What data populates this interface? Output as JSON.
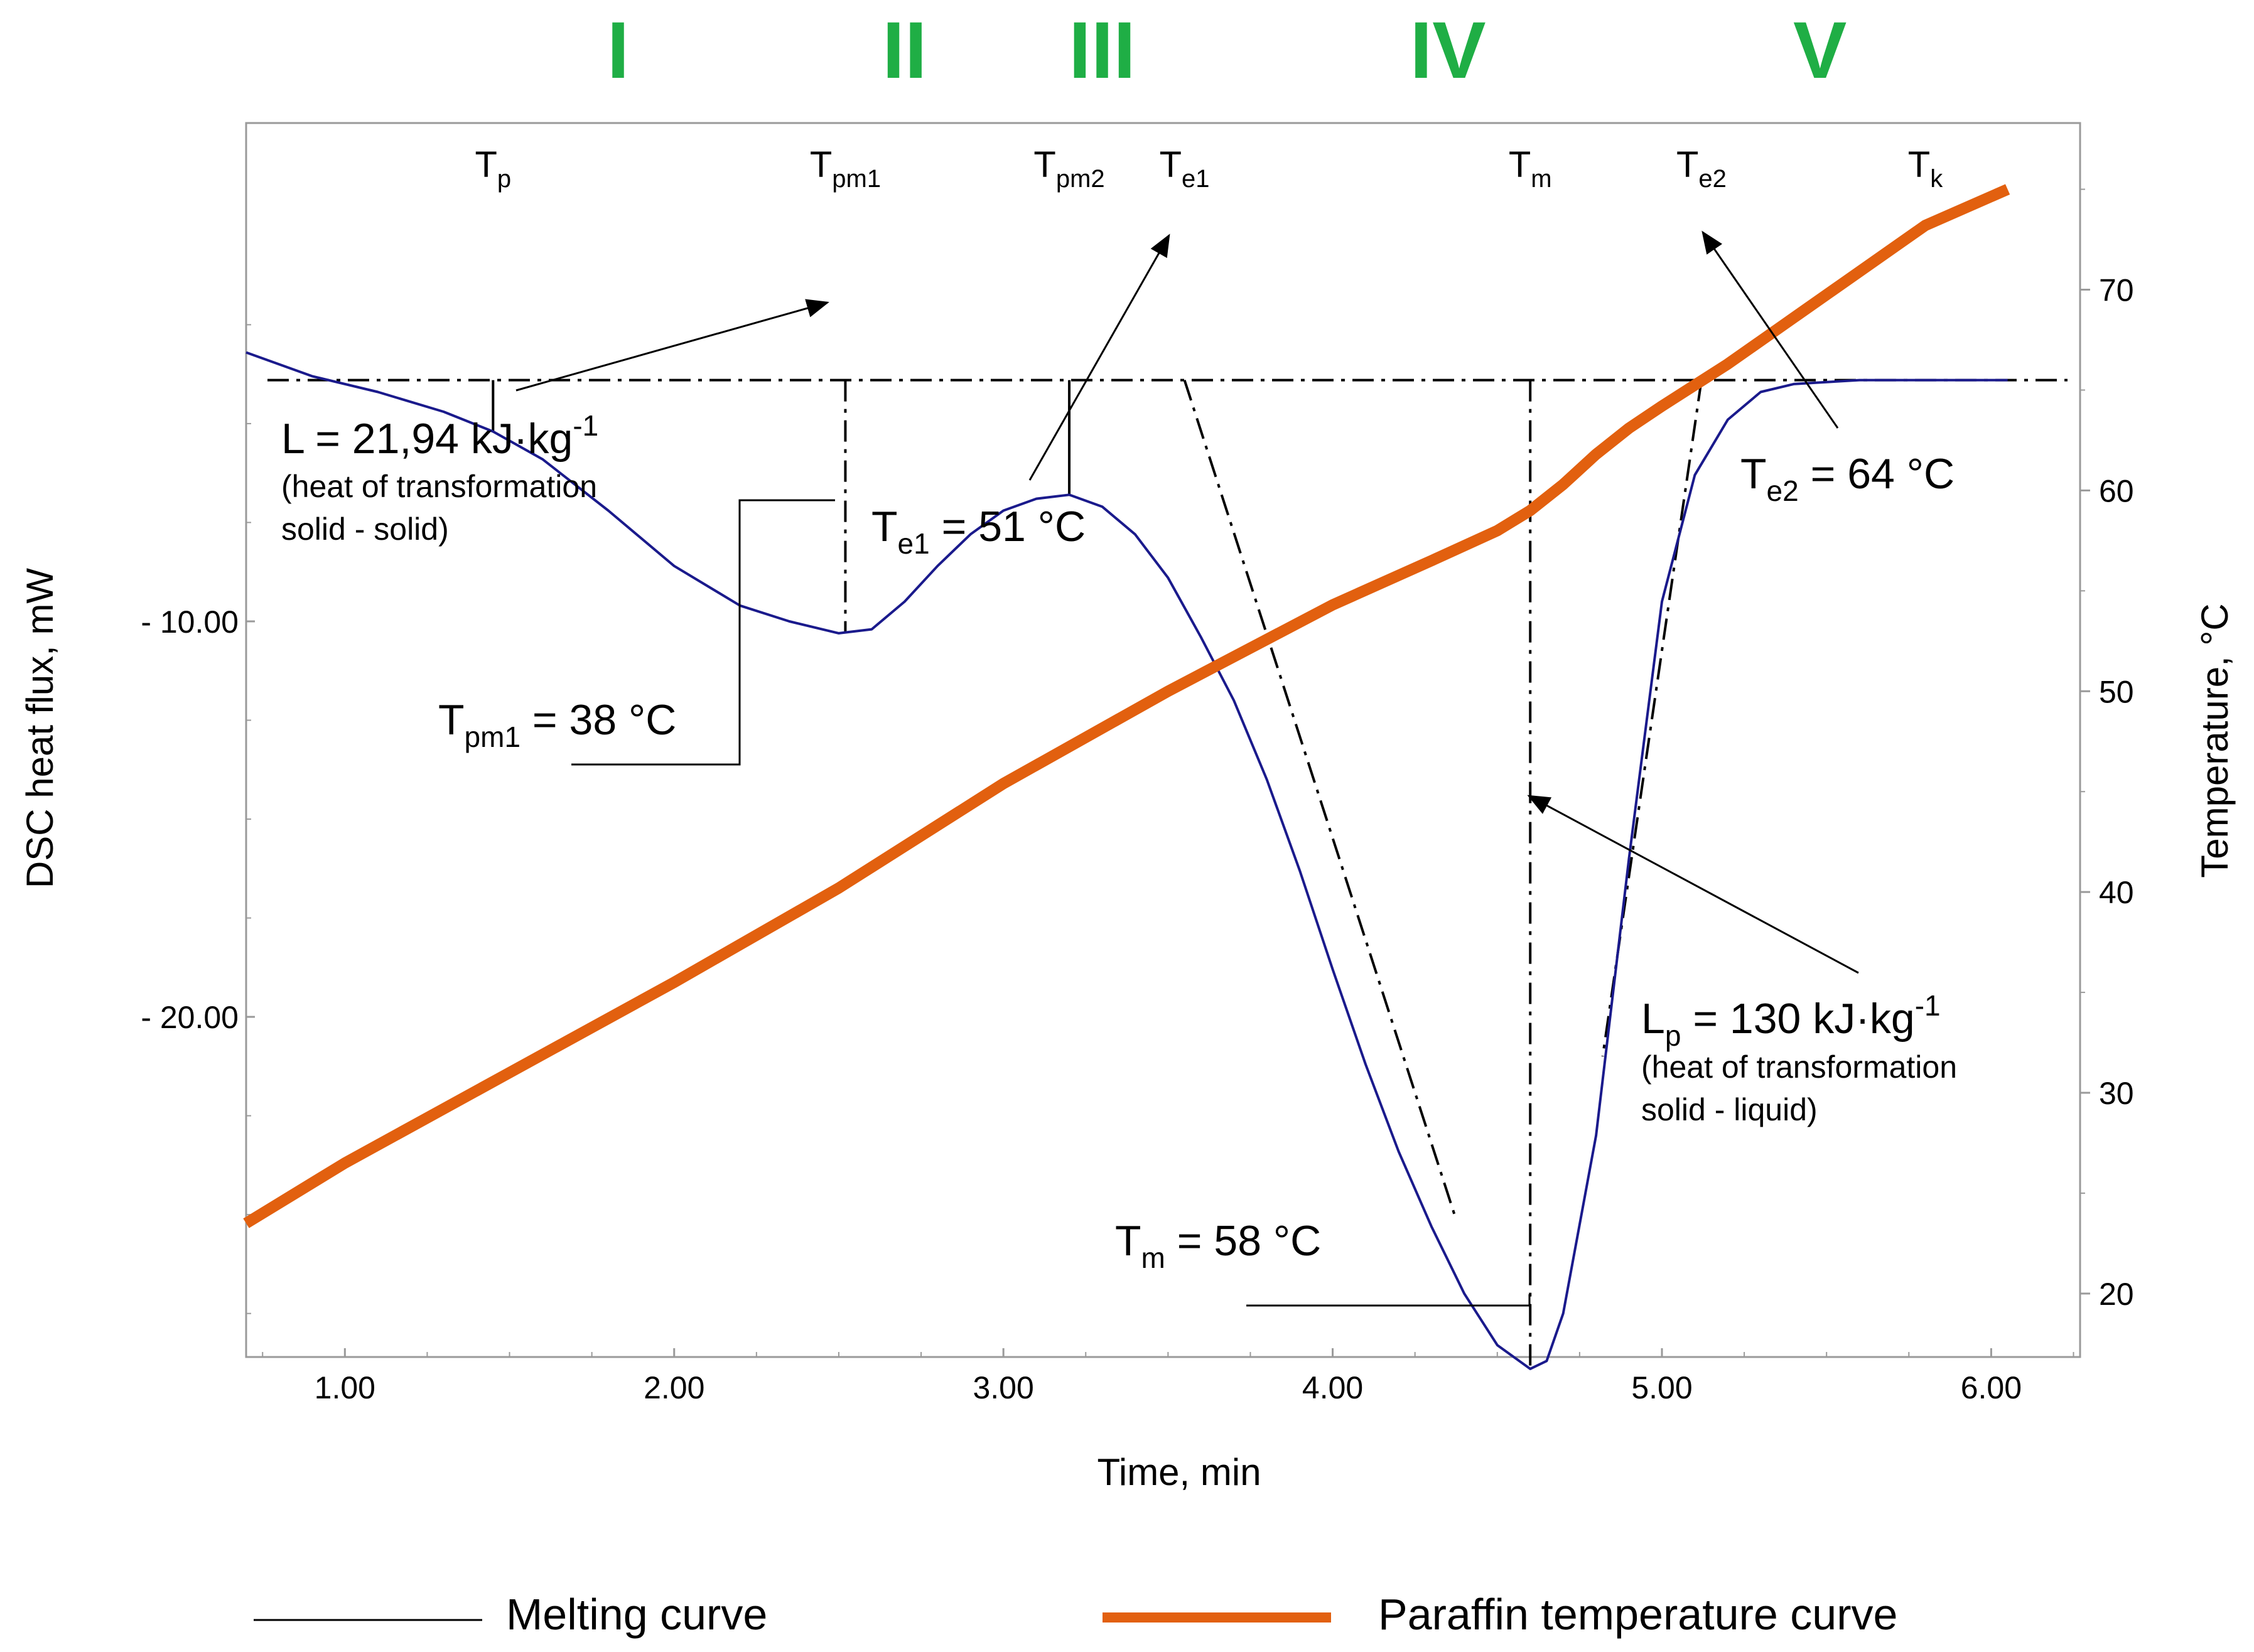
{
  "chart_data": {
    "type": "line",
    "x_axis": {
      "label": "Time, min",
      "range": [
        0.7,
        6.27
      ],
      "ticks": [
        "1.00",
        "2.00",
        "3.00",
        "4.00",
        "5.00",
        "6.00"
      ],
      "tick_values": [
        1,
        2,
        3,
        4,
        5,
        6
      ]
    },
    "y_axis_left": {
      "label": "DSC heat flux, mW",
      "range": [
        -28.6,
        2.6
      ],
      "ticks": [
        "- 10.00",
        "- 20.00"
      ],
      "tick_values": [
        -10,
        -20
      ]
    },
    "y_axis_right": {
      "label": "Temperature, °C",
      "range": [
        16.84,
        78.3
      ],
      "ticks": [
        "20",
        "30",
        "40",
        "50",
        "60",
        "70"
      ],
      "tick_values": [
        20,
        30,
        40,
        50,
        60,
        70
      ]
    },
    "regions": [
      "I",
      "II",
      "III",
      "IV",
      "V"
    ],
    "region_x": [
      1.83,
      2.7,
      3.3,
      4.35,
      5.48
    ],
    "series": [
      {
        "name": "Melting curve",
        "axis": "left",
        "color": "#1a1a8c",
        "x": [
          0.7,
          0.9,
          1.1,
          1.3,
          1.45,
          1.6,
          1.8,
          2.0,
          2.2,
          2.35,
          2.5,
          2.6,
          2.7,
          2.8,
          2.9,
          3.0,
          3.1,
          3.2,
          3.3,
          3.4,
          3.5,
          3.6,
          3.7,
          3.8,
          3.9,
          4.0,
          4.1,
          4.2,
          4.3,
          4.4,
          4.5,
          4.6,
          4.65,
          4.7,
          4.8,
          4.9,
          5.0,
          5.1,
          5.2,
          5.3,
          5.4,
          5.5,
          5.6,
          5.8,
          6.0,
          6.05
        ],
        "y": [
          -3.2,
          -3.8,
          -4.2,
          -4.7,
          -5.2,
          -5.9,
          -7.2,
          -8.6,
          -9.6,
          -10.0,
          -10.3,
          -10.2,
          -9.5,
          -8.6,
          -7.8,
          -7.2,
          -6.9,
          -6.8,
          -7.1,
          -7.8,
          -8.9,
          -10.4,
          -12.0,
          -14.0,
          -16.3,
          -18.8,
          -21.2,
          -23.4,
          -25.3,
          -27.0,
          -28.3,
          -28.9,
          -28.7,
          -27.5,
          -23.0,
          -16.0,
          -9.5,
          -6.3,
          -4.9,
          -4.2,
          -4.0,
          -3.95,
          -3.9,
          -3.9,
          -3.9,
          -3.9
        ]
      },
      {
        "name": "Paraffin temperature curve",
        "axis": "right",
        "color": "#e2600f",
        "x": [
          0.7,
          1.0,
          1.5,
          2.0,
          2.5,
          3.0,
          3.5,
          4.0,
          4.3,
          4.5,
          4.6,
          4.7,
          4.8,
          4.9,
          5.0,
          5.2,
          5.4,
          5.6,
          5.8,
          6.05
        ],
        "y": [
          23.5,
          26.5,
          31.0,
          35.5,
          40.2,
          45.4,
          50.0,
          54.3,
          56.5,
          58.0,
          59.0,
          60.3,
          61.8,
          63.1,
          64.2,
          66.3,
          68.6,
          70.9,
          73.2,
          75.0
        ]
      }
    ],
    "baseline_y": -3.9,
    "vertical_markers": [
      {
        "label": "T",
        "sub": "p",
        "x": 1.45,
        "y_bottom": -5.2
      },
      {
        "label": "T",
        "sub": "pm1",
        "x": 2.52,
        "y_bottom": -10.3
      },
      {
        "label": "T",
        "sub": "pm2",
        "x": 3.2,
        "y_bottom": -6.8
      },
      {
        "label": "T",
        "sub": "e1",
        "x": 3.55,
        "y_bottom": null
      },
      {
        "label": "T",
        "sub": "m",
        "x": 4.6,
        "y_bottom": -28.9
      },
      {
        "label": "T",
        "sub": "e2",
        "x": 5.12,
        "y_bottom": null
      },
      {
        "label": "T",
        "sub": "k",
        "x": 5.8,
        "y_bottom": null
      }
    ],
    "tangents": [
      {
        "from": [
          3.55,
          -3.9
        ],
        "to": [
          4.37,
          -25.0
        ]
      },
      {
        "from": [
          5.12,
          -3.9
        ],
        "to": [
          4.82,
          -21.0
        ]
      }
    ],
    "annotations": {
      "L": {
        "main": "L = 21,94 kJ·kg",
        "sup": "-1",
        "note1": "(heat of  transformation",
        "note2": "solid - solid)"
      },
      "Te1": {
        "main": "T",
        "sub": "e1",
        "value": " = 51 °C"
      },
      "Tpm1": {
        "main": "T",
        "sub": "pm1",
        "value": " = 38 °C"
      },
      "Te2": {
        "main": "T",
        "sub": "e2",
        "value": " = 64 °C"
      },
      "Lp": {
        "main": "L",
        "sub": "p",
        "value": " = 130 kJ·kg",
        "sup": "-1",
        "note1": "(heat of  transformation",
        "note2": "solid - liquid)"
      },
      "Tm": {
        "main": "T",
        "sub": "m",
        "value": " = 58 °C"
      }
    },
    "legend": [
      {
        "name": "Melting curve",
        "color": "#000000"
      },
      {
        "name": "Paraffin temperature curve",
        "color": "#e2600f"
      }
    ]
  }
}
